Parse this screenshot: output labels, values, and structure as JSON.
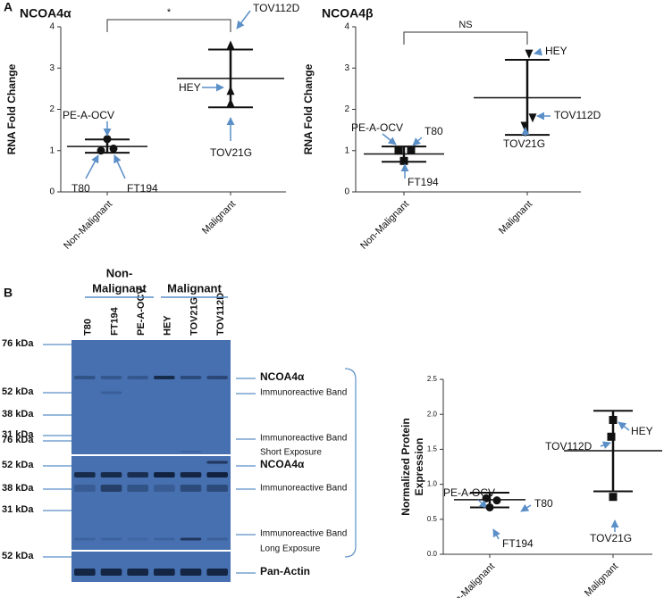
{
  "panel_labels": [
    "A",
    "B"
  ],
  "chart_data": [
    {
      "type": "dot",
      "title": "NCOA4α",
      "ylabel": "RNA Fold Change",
      "categories": [
        "Non-Malignant",
        "Malignant"
      ],
      "ylim": [
        0,
        4
      ],
      "yticks": [
        0,
        1,
        2,
        3,
        4
      ],
      "annotation": "*",
      "groups": [
        {
          "marker": "circle",
          "points": [
            {
              "label": "PE-A-OCV",
              "value": 1.28
            },
            {
              "label": "T80",
              "value": 1.0
            },
            {
              "label": "FT194",
              "value": 1.05
            }
          ],
          "mean": 1.1,
          "upper": 1.27,
          "lower": 0.95
        },
        {
          "marker": "triangle",
          "points": [
            {
              "label": "TOV112D",
              "value": 3.55
            },
            {
              "label": "HEY",
              "value": 2.45
            },
            {
              "label": "TOV21G",
              "value": 2.15
            }
          ],
          "mean": 2.75,
          "upper": 3.45,
          "lower": 2.05
        }
      ]
    },
    {
      "type": "dot",
      "title": "NCOA4β",
      "ylabel": "RNA Fold Change",
      "categories": [
        "Non-Malignant",
        "Malignant"
      ],
      "ylim": [
        0,
        4
      ],
      "yticks": [
        0,
        1,
        2,
        3,
        4
      ],
      "annotation": "NS",
      "groups": [
        {
          "marker": "square",
          "points": [
            {
              "label": "PE-A-OCV",
              "value": 1.0
            },
            {
              "label": "T80",
              "value": 1.02
            },
            {
              "label": "FT194",
              "value": 0.75
            }
          ],
          "mean": 0.92,
          "upper": 1.1,
          "lower": 0.73
        },
        {
          "marker": "triangle-down",
          "points": [
            {
              "label": "HEY",
              "value": 3.35
            },
            {
              "label": "TOV112D",
              "value": 1.8
            },
            {
              "label": "TOV21G",
              "value": 1.6
            }
          ],
          "mean": 2.28,
          "upper": 3.2,
          "lower": 1.38
        }
      ]
    },
    {
      "type": "dot",
      "ylabel": [
        "Normalized Protein",
        "Expression"
      ],
      "categories": [
        "Non-Malignant",
        "Malignant"
      ],
      "ylim": [
        0,
        2.5
      ],
      "yticks": [
        {
          "value": 0,
          "label": "0.0"
        },
        0.5,
        {
          "value": 1,
          "label": "1.0"
        },
        1.5,
        {
          "value": 2,
          "label": "2.0"
        },
        2.5
      ],
      "groups": [
        {
          "marker": "circle",
          "points": [
            {
              "label": "PE-A-OCV",
              "value": 0.8
            },
            {
              "label": "T80",
              "value": 0.77
            },
            {
              "label": "FT194",
              "value": 0.67
            }
          ],
          "mean": 0.78,
          "upper": 0.88,
          "lower": 0.67
        },
        {
          "marker": "square",
          "points": [
            {
              "label": "HEY",
              "value": 1.92
            },
            {
              "label": "TOV112D",
              "value": 1.68
            },
            {
              "label": "TOV21G",
              "value": 0.82
            }
          ],
          "mean": 1.48,
          "upper": 2.05,
          "lower": 0.9
        }
      ]
    }
  ],
  "blot": {
    "group_labels": [
      [
        "Non-",
        "Malignant"
      ],
      [
        "Malignant"
      ]
    ],
    "lanes": [
      "T80",
      "FT194",
      "PE-A-OCV",
      "HEY",
      "TOV21G",
      "TOV112D"
    ],
    "markers": [
      "76 kDa",
      "52 kDa",
      "38 kDa",
      "31 kDa",
      "76 kDa",
      "52 kDa",
      "38 kDa",
      "31 kDa",
      "52 kDa"
    ],
    "bands": [
      "NCOA4α",
      "Immunoreactive Band",
      "Immunoreactive Band",
      "Short Exposure",
      "NCOA4α",
      "Immunoreactive Band",
      "Immunoreactive Band",
      "Long Exposure",
      "Pan-Actin"
    ]
  }
}
